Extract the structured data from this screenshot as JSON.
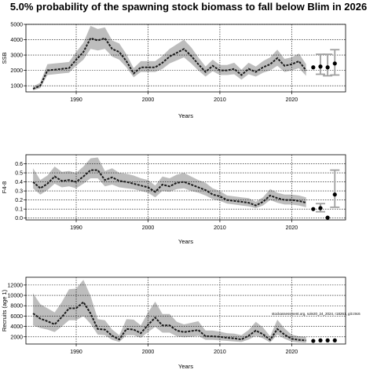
{
  "title": "5.0% probability of the spawning stock biomass to fall below Blim in 2026",
  "annotation": "stockassessment.org, sole20_24_2024, r18261, git:c9c6",
  "colors": {
    "band": "#bdbdbd",
    "line": "#1a1a1a",
    "grid": "#000000",
    "ci": "#a0a0a0"
  },
  "chart_data": [
    {
      "type": "line",
      "xlabel": "Years",
      "ylabel": "SSB",
      "xlim": [
        1983,
        2027.5
      ],
      "ylim": [
        600,
        5000
      ],
      "xticks": [
        1990,
        2000,
        2010,
        2020
      ],
      "yticks": [
        1000,
        2000,
        3000,
        4000,
        5000
      ],
      "grid": true,
      "years": [
        1984,
        1985,
        1986,
        1987,
        1988,
        1989,
        1990,
        1991,
        1992,
        1993,
        1994,
        1995,
        1996,
        1997,
        1998,
        1999,
        2000,
        2001,
        2002,
        2003,
        2004,
        2005,
        2006,
        2007,
        2008,
        2009,
        2010,
        2011,
        2012,
        2013,
        2014,
        2015,
        2016,
        2017,
        2018,
        2019,
        2020,
        2021,
        2022
      ],
      "estimate": [
        800,
        1000,
        2000,
        2050,
        2100,
        2150,
        2700,
        3200,
        4100,
        3950,
        4100,
        3400,
        3200,
        2600,
        1800,
        2200,
        2200,
        2200,
        2500,
        2900,
        3150,
        3400,
        2950,
        2400,
        1900,
        2300,
        2000,
        2000,
        2100,
        1700,
        2100,
        1900,
        2200,
        2400,
        2800,
        2300,
        2400,
        2600,
        2000
      ],
      "lower": [
        700,
        850,
        1700,
        1750,
        1800,
        1850,
        2300,
        2700,
        3400,
        3300,
        3400,
        2900,
        2700,
        2200,
        1550,
        1900,
        1900,
        1900,
        2100,
        2450,
        2650,
        2850,
        2450,
        2000,
        1600,
        1950,
        1700,
        1700,
        1750,
        1400,
        1750,
        1600,
        1850,
        2000,
        2300,
        1900,
        2000,
        2150,
        1650
      ],
      "upper": [
        950,
        1200,
        2400,
        2450,
        2500,
        2550,
        3200,
        3800,
        4900,
        4700,
        4800,
        3950,
        3750,
        3050,
        2150,
        2600,
        2600,
        2600,
        2950,
        3400,
        3700,
        4000,
        3500,
        2850,
        2250,
        2700,
        2350,
        2350,
        2500,
        2050,
        2500,
        2250,
        2600,
        2850,
        3350,
        2750,
        2850,
        3100,
        2400
      ],
      "forecast": [
        {
          "year": 2023,
          "value": 2200
        },
        {
          "year": 2024,
          "value": 2250,
          "lower": 1750,
          "upper": 3050
        },
        {
          "year": 2025,
          "value": 2200,
          "lower": 1650,
          "upper": 3050
        },
        {
          "year": 2026,
          "value": 2450,
          "lower": 1700,
          "upper": 3350
        }
      ]
    },
    {
      "type": "line",
      "xlabel": "Years",
      "ylabel": "F4-8",
      "xlim": [
        1983,
        2027.5
      ],
      "ylim": [
        -0.02,
        0.7
      ],
      "xticks": [
        1990,
        2000,
        2010,
        2020
      ],
      "yticks": [
        0.0,
        0.1,
        0.2,
        0.3,
        0.4,
        0.5,
        0.6
      ],
      "grid": true,
      "years": [
        1984,
        1985,
        1986,
        1987,
        1988,
        1989,
        1990,
        1991,
        1992,
        1993,
        1994,
        1995,
        1996,
        1997,
        1998,
        1999,
        2000,
        2001,
        2002,
        2003,
        2004,
        2005,
        2006,
        2007,
        2008,
        2009,
        2010,
        2011,
        2012,
        2013,
        2014,
        2015,
        2016,
        2017,
        2018,
        2019,
        2020,
        2021,
        2022
      ],
      "estimate": [
        0.4,
        0.33,
        0.38,
        0.46,
        0.41,
        0.42,
        0.4,
        0.46,
        0.53,
        0.53,
        0.42,
        0.45,
        0.41,
        0.4,
        0.38,
        0.36,
        0.34,
        0.29,
        0.37,
        0.35,
        0.39,
        0.4,
        0.37,
        0.34,
        0.31,
        0.26,
        0.24,
        0.2,
        0.19,
        0.18,
        0.17,
        0.14,
        0.18,
        0.25,
        0.22,
        0.2,
        0.2,
        0.19,
        0.17
      ],
      "lower": [
        0.33,
        0.26,
        0.31,
        0.38,
        0.34,
        0.35,
        0.33,
        0.38,
        0.44,
        0.44,
        0.35,
        0.37,
        0.34,
        0.33,
        0.32,
        0.3,
        0.28,
        0.23,
        0.3,
        0.29,
        0.32,
        0.33,
        0.3,
        0.28,
        0.25,
        0.21,
        0.19,
        0.16,
        0.15,
        0.14,
        0.13,
        0.11,
        0.14,
        0.2,
        0.17,
        0.15,
        0.15,
        0.14,
        0.12
      ],
      "upper": [
        0.55,
        0.42,
        0.47,
        0.57,
        0.51,
        0.52,
        0.5,
        0.57,
        0.66,
        0.67,
        0.52,
        0.55,
        0.5,
        0.49,
        0.47,
        0.44,
        0.42,
        0.36,
        0.46,
        0.44,
        0.48,
        0.5,
        0.46,
        0.42,
        0.39,
        0.33,
        0.3,
        0.25,
        0.24,
        0.23,
        0.22,
        0.18,
        0.23,
        0.32,
        0.28,
        0.26,
        0.26,
        0.25,
        0.23
      ],
      "forecast": [
        {
          "year": 2023,
          "value": 0.1
        },
        {
          "year": 2024,
          "value": 0.11,
          "lower": 0.07,
          "upper": 0.16
        },
        {
          "year": 2025,
          "value": 0.005
        },
        {
          "year": 2026,
          "value": 0.26,
          "lower": 0.12,
          "upper": 0.53
        }
      ]
    },
    {
      "type": "line",
      "xlabel": "Years",
      "ylabel": "Recruits (age 1)",
      "xlim": [
        1983,
        2027.5
      ],
      "ylim": [
        600,
        13500
      ],
      "xticks": [
        1990,
        2000,
        2010,
        2020
      ],
      "yticks": [
        2000,
        4000,
        6000,
        8000,
        10000,
        12000
      ],
      "grid": true,
      "years": [
        1984,
        1985,
        1986,
        1987,
        1988,
        1989,
        1990,
        1991,
        1992,
        1993,
        1994,
        1995,
        1996,
        1997,
        1998,
        1999,
        2000,
        2001,
        2002,
        2003,
        2004,
        2005,
        2006,
        2007,
        2008,
        2009,
        2010,
        2011,
        2012,
        2013,
        2014,
        2015,
        2016,
        2017,
        2018,
        2019,
        2020,
        2021,
        2022
      ],
      "estimate": [
        6500,
        5500,
        5000,
        4400,
        5800,
        7500,
        7500,
        8700,
        6500,
        3500,
        3400,
        2200,
        1500,
        3500,
        3400,
        2700,
        4300,
        5700,
        4200,
        4200,
        3200,
        2900,
        3100,
        3300,
        2100,
        2100,
        2000,
        1800,
        1700,
        1500,
        2200,
        3200,
        2500,
        1400,
        3500,
        2400,
        1600,
        1400,
        1300
      ],
      "lower": [
        4200,
        3700,
        3400,
        2900,
        4000,
        5200,
        5200,
        6000,
        4500,
        2400,
        2300,
        1400,
        1000,
        2300,
        2300,
        1800,
        2900,
        3900,
        2800,
        2800,
        2100,
        1900,
        2000,
        2200,
        1400,
        1400,
        1300,
        1200,
        1100,
        1000,
        1450,
        2200,
        1700,
        900,
        2400,
        1600,
        1050,
        900,
        850
      ],
      "upper": [
        10400,
        8300,
        7500,
        6700,
        8700,
        11200,
        11300,
        13000,
        9900,
        5400,
        5200,
        3400,
        2300,
        5400,
        5300,
        4200,
        6700,
        8800,
        6400,
        6400,
        4900,
        4400,
        4700,
        5000,
        3200,
        3200,
        3000,
        2700,
        2600,
        2300,
        3300,
        4900,
        3800,
        2100,
        5300,
        3600,
        2400,
        2100,
        2000
      ],
      "forecast": [
        {
          "year": 2023,
          "value": 1200
        },
        {
          "year": 2024,
          "value": 1300
        },
        {
          "year": 2025,
          "value": 1300
        },
        {
          "year": 2026,
          "value": 1300
        }
      ]
    }
  ]
}
